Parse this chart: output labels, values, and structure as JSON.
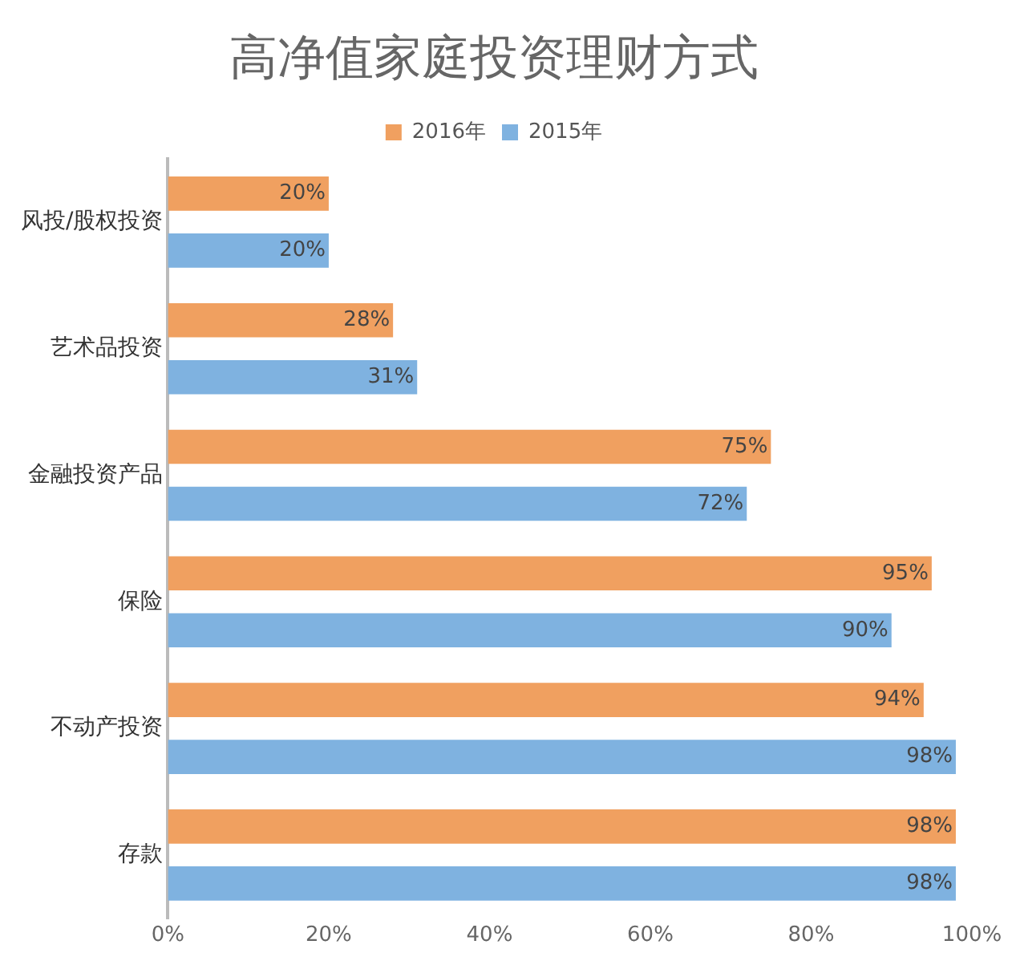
{
  "chart_data": {
    "type": "bar",
    "orientation": "horizontal",
    "title": "高净值家庭投资理财方式",
    "categories": [
      "风投/股权投资",
      "艺术品投资",
      "金融投资产品",
      "保险",
      "不动产投资",
      "存款"
    ],
    "series": [
      {
        "name": "2016年",
        "color": "#f0a060",
        "values": [
          20,
          28,
          75,
          95,
          94,
          98
        ],
        "value_labels": [
          "20%",
          "28%",
          "75%",
          "95%",
          "94%",
          "98%"
        ]
      },
      {
        "name": "2015年",
        "color": "#7fb2e0",
        "values": [
          20,
          31,
          72,
          90,
          98,
          98
        ],
        "value_labels": [
          "20%",
          "31%",
          "72%",
          "90%",
          "98%",
          "98%"
        ]
      }
    ],
    "xlim": [
      0,
      100
    ],
    "xticks": [
      {
        "value": 0,
        "label": "0%"
      },
      {
        "value": 20,
        "label": "20%"
      },
      {
        "value": 40,
        "label": "40%"
      },
      {
        "value": 60,
        "label": "60%"
      },
      {
        "value": 80,
        "label": "80%"
      },
      {
        "value": 100,
        "label": "100%"
      }
    ],
    "grid": false,
    "legend": "top"
  }
}
